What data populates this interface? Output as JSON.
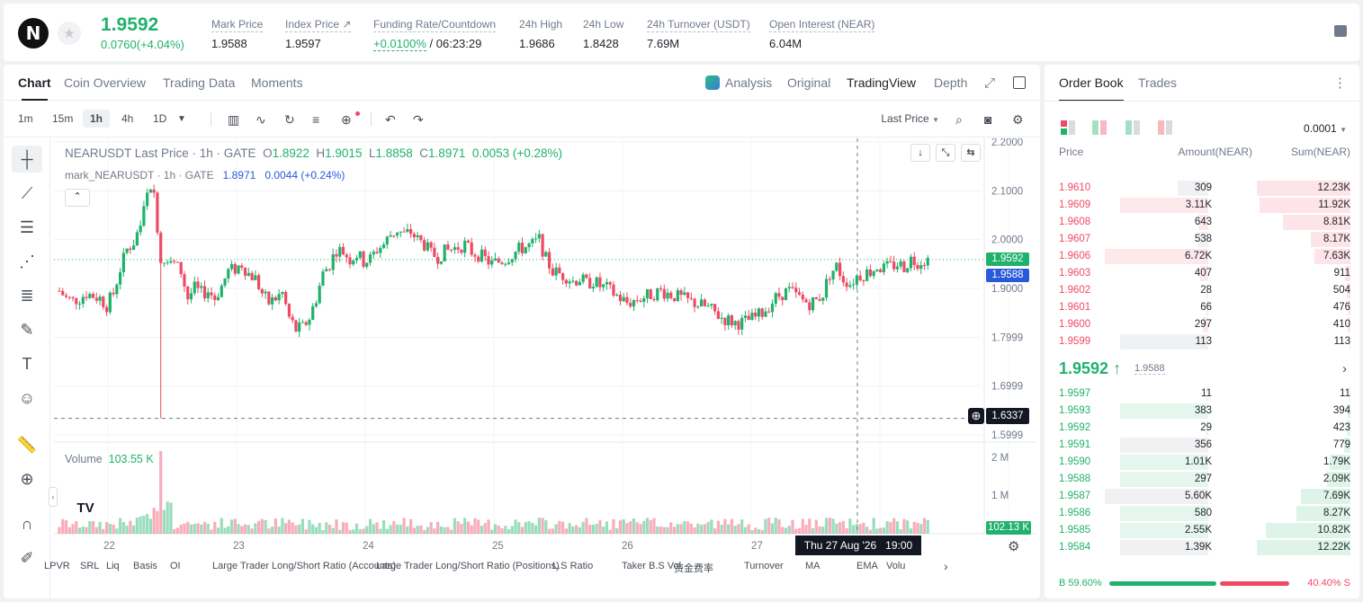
{
  "header": {
    "logo_glyph": "N",
    "price": "1.9592",
    "change": "0.0760(+4.04%)",
    "stats": [
      {
        "label": "Mark Price",
        "value": "1.9588"
      },
      {
        "label": "Index Price ↗",
        "value": "1.9597"
      },
      {
        "label": "Funding Rate/Countdown",
        "value_green": "+0.0100%",
        "value": " / 06:23:29"
      },
      {
        "label": "24h High",
        "value": "1.9686"
      },
      {
        "label": "24h Low",
        "value": "1.8428"
      },
      {
        "label": "24h Turnover (USDT)",
        "value": "7.69M"
      },
      {
        "label": "Open Interest (NEAR)",
        "value": "6.04M"
      }
    ]
  },
  "chart_tabs": [
    "Chart",
    "Coin Overview",
    "Trading Data",
    "Moments"
  ],
  "view_tabs": {
    "analysis": "Analysis",
    "original": "Original",
    "tradingview": "TradingView",
    "depth": "Depth"
  },
  "intervals": [
    "1m",
    "15m",
    "1h",
    "4h",
    "1D"
  ],
  "selected_interval": "1h",
  "price_type": "Last Price",
  "legend": {
    "title": "NEARUSDT Last Price · 1h · GATE",
    "o_label": "O",
    "o": "1.8922",
    "h_label": "H",
    "h": "1.9015",
    "l_label": "L",
    "l": "1.8858",
    "c_label": "C",
    "c": "1.8971",
    "chg": "0.0053 (+0.28%)",
    "mark_title": "mark_NEARUSDT · 1h · GATE",
    "mark_value": "1.8971",
    "mark_chg": "0.0044 (+0.24%)"
  },
  "volume_legend": {
    "label": "Volume",
    "value": "103.55 K"
  },
  "price_axis": [
    "2.2000",
    "2.1000",
    "2.0000",
    "1.9000",
    "1.7999",
    "1.6999",
    "1.5999"
  ],
  "volume_axis": [
    "2 M",
    "1 M"
  ],
  "time_axis": [
    "22",
    "23",
    "24",
    "25",
    "26",
    "27"
  ],
  "tags": {
    "last": "1.9592",
    "mark": "1.9588",
    "cross": "1.6337",
    "vol": "102.13 K",
    "time": "Thu 27 Aug '26   19:00"
  },
  "indicators": [
    "LPVR",
    "SRL",
    "Liq",
    "Basis",
    "OI",
    "Large Trader Long/Short Ratio (Accounts)",
    "Large Trader Long/Short Ratio (Positions)",
    "L.S Ratio",
    "Taker B.S Vol.",
    "资金费率",
    "Turnover",
    "MA",
    "EMA",
    "Volu"
  ],
  "chart_data": {
    "type": "candlestick",
    "series": [
      {
        "name": "NEARUSDT"
      }
    ],
    "ylim": [
      1.5999,
      2.2
    ],
    "y_ticks": [
      2.2,
      2.1,
      2.0,
      1.9,
      1.7999,
      1.6999,
      1.5999
    ],
    "x_ticks": [
      "22",
      "23",
      "24",
      "25",
      "26",
      "27"
    ],
    "close_path": [
      1.895,
      1.88,
      1.875,
      1.88,
      1.89,
      1.885,
      1.88,
      1.865,
      1.89,
      1.94,
      1.98,
      1.995,
      2.03,
      2.09,
      2.095,
      1.96,
      1.965,
      1.95,
      1.935,
      1.88,
      1.9,
      1.89,
      1.895,
      1.88,
      1.905,
      1.935,
      1.94,
      1.95,
      1.93,
      1.92,
      1.89,
      1.87,
      1.88,
      1.89,
      1.84,
      1.815,
      1.82,
      1.84,
      1.88,
      1.93,
      1.95,
      1.98,
      1.975,
      1.96,
      1.97,
      1.955,
      1.96,
      1.98,
      1.99,
      2.01,
      2.02,
      2.01,
      2.015,
      2.0,
      1.99,
      1.97,
      1.965,
      1.975,
      1.98,
      1.985,
      1.99,
      1.975,
      1.97,
      1.96,
      1.95,
      1.955,
      1.96,
      1.97,
      1.98,
      1.985,
      1.99,
      2.0,
      1.96,
      1.935,
      1.93,
      1.925,
      1.915,
      1.92,
      1.91,
      1.915,
      1.905,
      1.9,
      1.89,
      1.88,
      1.87,
      1.875,
      1.88,
      1.885,
      1.89,
      1.895,
      1.89,
      1.885,
      1.88,
      1.875,
      1.87,
      1.865,
      1.86,
      1.85,
      1.84,
      1.835,
      1.83,
      1.83,
      1.835,
      1.84,
      1.85,
      1.865,
      1.88,
      1.89,
      1.895,
      1.885,
      1.875,
      1.87,
      1.875,
      1.89,
      1.93,
      1.945,
      1.92,
      1.91,
      1.925,
      1.93,
      1.935,
      1.945,
      1.94,
      1.945,
      1.95,
      1.945,
      1.96,
      1.955,
      1.959
    ],
    "spike_low": 1.6337,
    "volume_peak": "2 M"
  },
  "orderbook": {
    "tabs": [
      "Order Book",
      "Trades"
    ],
    "precision": "0.0001",
    "headers": {
      "price": "Price",
      "amount": "Amount(NEAR)",
      "sum": "Sum(NEAR)"
    },
    "asks": [
      {
        "price": "1.9610",
        "amount": "309",
        "sum": "12.23K",
        "af": 0.3,
        "sf": 1.0
      },
      {
        "price": "1.9609",
        "amount": "3.11K",
        "sum": "11.92K",
        "af": 0.85,
        "sf": 0.97
      },
      {
        "price": "1.9608",
        "amount": "643",
        "sum": "8.81K",
        "af": 0.1,
        "sf": 0.72
      },
      {
        "price": "1.9607",
        "amount": "538",
        "sum": "8.17K",
        "af": 0.1,
        "sf": 0.42
      },
      {
        "price": "1.9606",
        "amount": "6.72K",
        "sum": "7.63K",
        "af": 1.0,
        "sf": 0.38
      },
      {
        "price": "1.9603",
        "amount": "407",
        "sum": "911",
        "af": 0.08,
        "sf": 0.06
      },
      {
        "price": "1.9602",
        "amount": "28",
        "sum": "504",
        "af": 0.02,
        "sf": 0.04
      },
      {
        "price": "1.9601",
        "amount": "66",
        "sum": "476",
        "af": 0.02,
        "sf": 0.03
      },
      {
        "price": "1.9600",
        "amount": "297",
        "sum": "410",
        "af": 0.05,
        "sf": 0.03
      },
      {
        "price": "1.9599",
        "amount": "113",
        "sum": "113",
        "af": 0.85,
        "sf": 0.01
      }
    ],
    "last": "1.9592",
    "arrow": "↑",
    "mark": "1.9588",
    "bids": [
      {
        "price": "1.9597",
        "amount": "11",
        "sum": "11",
        "af": 0.02,
        "sf": 0.01
      },
      {
        "price": "1.9593",
        "amount": "383",
        "sum": "394",
        "af": 0.85,
        "sf": 0.03
      },
      {
        "price": "1.9592",
        "amount": "29",
        "sum": "423",
        "af": 0.02,
        "sf": 0.04
      },
      {
        "price": "1.9591",
        "amount": "356",
        "sum": "779",
        "af": 0.85,
        "sf": 0.07
      },
      {
        "price": "1.9590",
        "amount": "1.01K",
        "sum": "1.79K",
        "af": 0.85,
        "sf": 0.22
      },
      {
        "price": "1.9588",
        "amount": "297",
        "sum": "2.09K",
        "af": 0.85,
        "sf": 0.25
      },
      {
        "price": "1.9587",
        "amount": "5.60K",
        "sum": "7.69K",
        "af": 1.0,
        "sf": 0.53
      },
      {
        "price": "1.9586",
        "amount": "580",
        "sum": "8.27K",
        "af": 0.85,
        "sf": 0.58
      },
      {
        "price": "1.9585",
        "amount": "2.55K",
        "sum": "10.82K",
        "af": 0.85,
        "sf": 0.9
      },
      {
        "price": "1.9584",
        "amount": "1.39K",
        "sum": "12.22K",
        "af": 0.85,
        "sf": 1.0
      }
    ],
    "buy_ratio": "B 59.60%",
    "sell_ratio": "40.40% S",
    "buy_fraction": 0.596
  },
  "colors": {
    "up": "#20b26c",
    "down": "#ef4a64",
    "mark": "#2a5ada"
  }
}
